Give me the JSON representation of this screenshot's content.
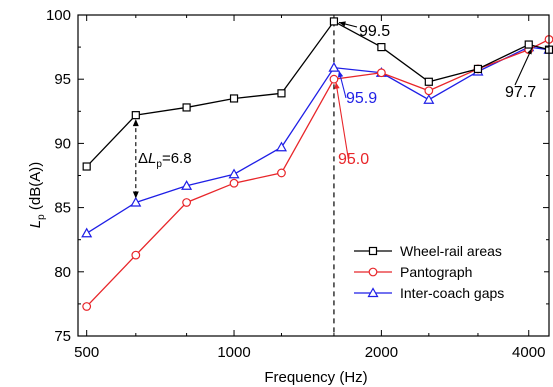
{
  "chart_data": {
    "type": "line",
    "xlabel": "Frequency (Hz)",
    "ylabel_main": "L",
    "ylabel_sub": "p",
    "ylabel_rest": " (dB(A))",
    "x_scale": "log",
    "xlim": [
      480,
      4400
    ],
    "ylim": [
      75,
      100
    ],
    "x_ticks": [
      500,
      1000,
      2000,
      4000
    ],
    "x_tick_labels": [
      "500",
      "1000",
      "2000",
      "4000"
    ],
    "x_minor_ticks": [
      630,
      800,
      1250,
      1600,
      2500,
      3150
    ],
    "y_ticks": [
      75,
      80,
      85,
      90,
      95,
      100
    ],
    "y_tick_labels": [
      "75",
      "80",
      "85",
      "90",
      "95",
      "100"
    ],
    "x": [
      500,
      630,
      800,
      1000,
      1250,
      1600,
      2000,
      2500,
      3150,
      4000,
      5000
    ],
    "series": [
      {
        "name": "Wheel-rail areas",
        "color": "#000000",
        "marker": "square",
        "values": [
          88.2,
          92.2,
          92.8,
          93.5,
          93.9,
          99.5,
          97.5,
          94.8,
          95.8,
          97.7,
          97.3
        ]
      },
      {
        "name": "Pantograph",
        "color": "#e8262a",
        "marker": "circle",
        "values": [
          77.3,
          81.3,
          85.4,
          86.9,
          87.7,
          95.0,
          95.5,
          94.1,
          95.8,
          97.3,
          98.1
        ]
      },
      {
        "name": "Inter-coach gaps",
        "color": "#1f1fe6",
        "marker": "triangle",
        "values": [
          83.0,
          85.4,
          86.7,
          87.6,
          89.7,
          95.9,
          95.5,
          93.4,
          95.6,
          97.5,
          97.3
        ]
      }
    ],
    "vline_x": 1600,
    "delta_arrow": {
      "x": 630,
      "y_top": 92.2,
      "y_bottom": 85.4
    },
    "annotations": {
      "peak_wheel": "99.5",
      "peak_inter": "95.9",
      "peak_panto": "95.0",
      "wheel_4000": "97.7",
      "delta_prefix": "Δ",
      "delta_L": "L",
      "delta_sub": "p",
      "delta_value": "=6.8"
    },
    "legend_position": "bottom-right",
    "grid": false
  }
}
